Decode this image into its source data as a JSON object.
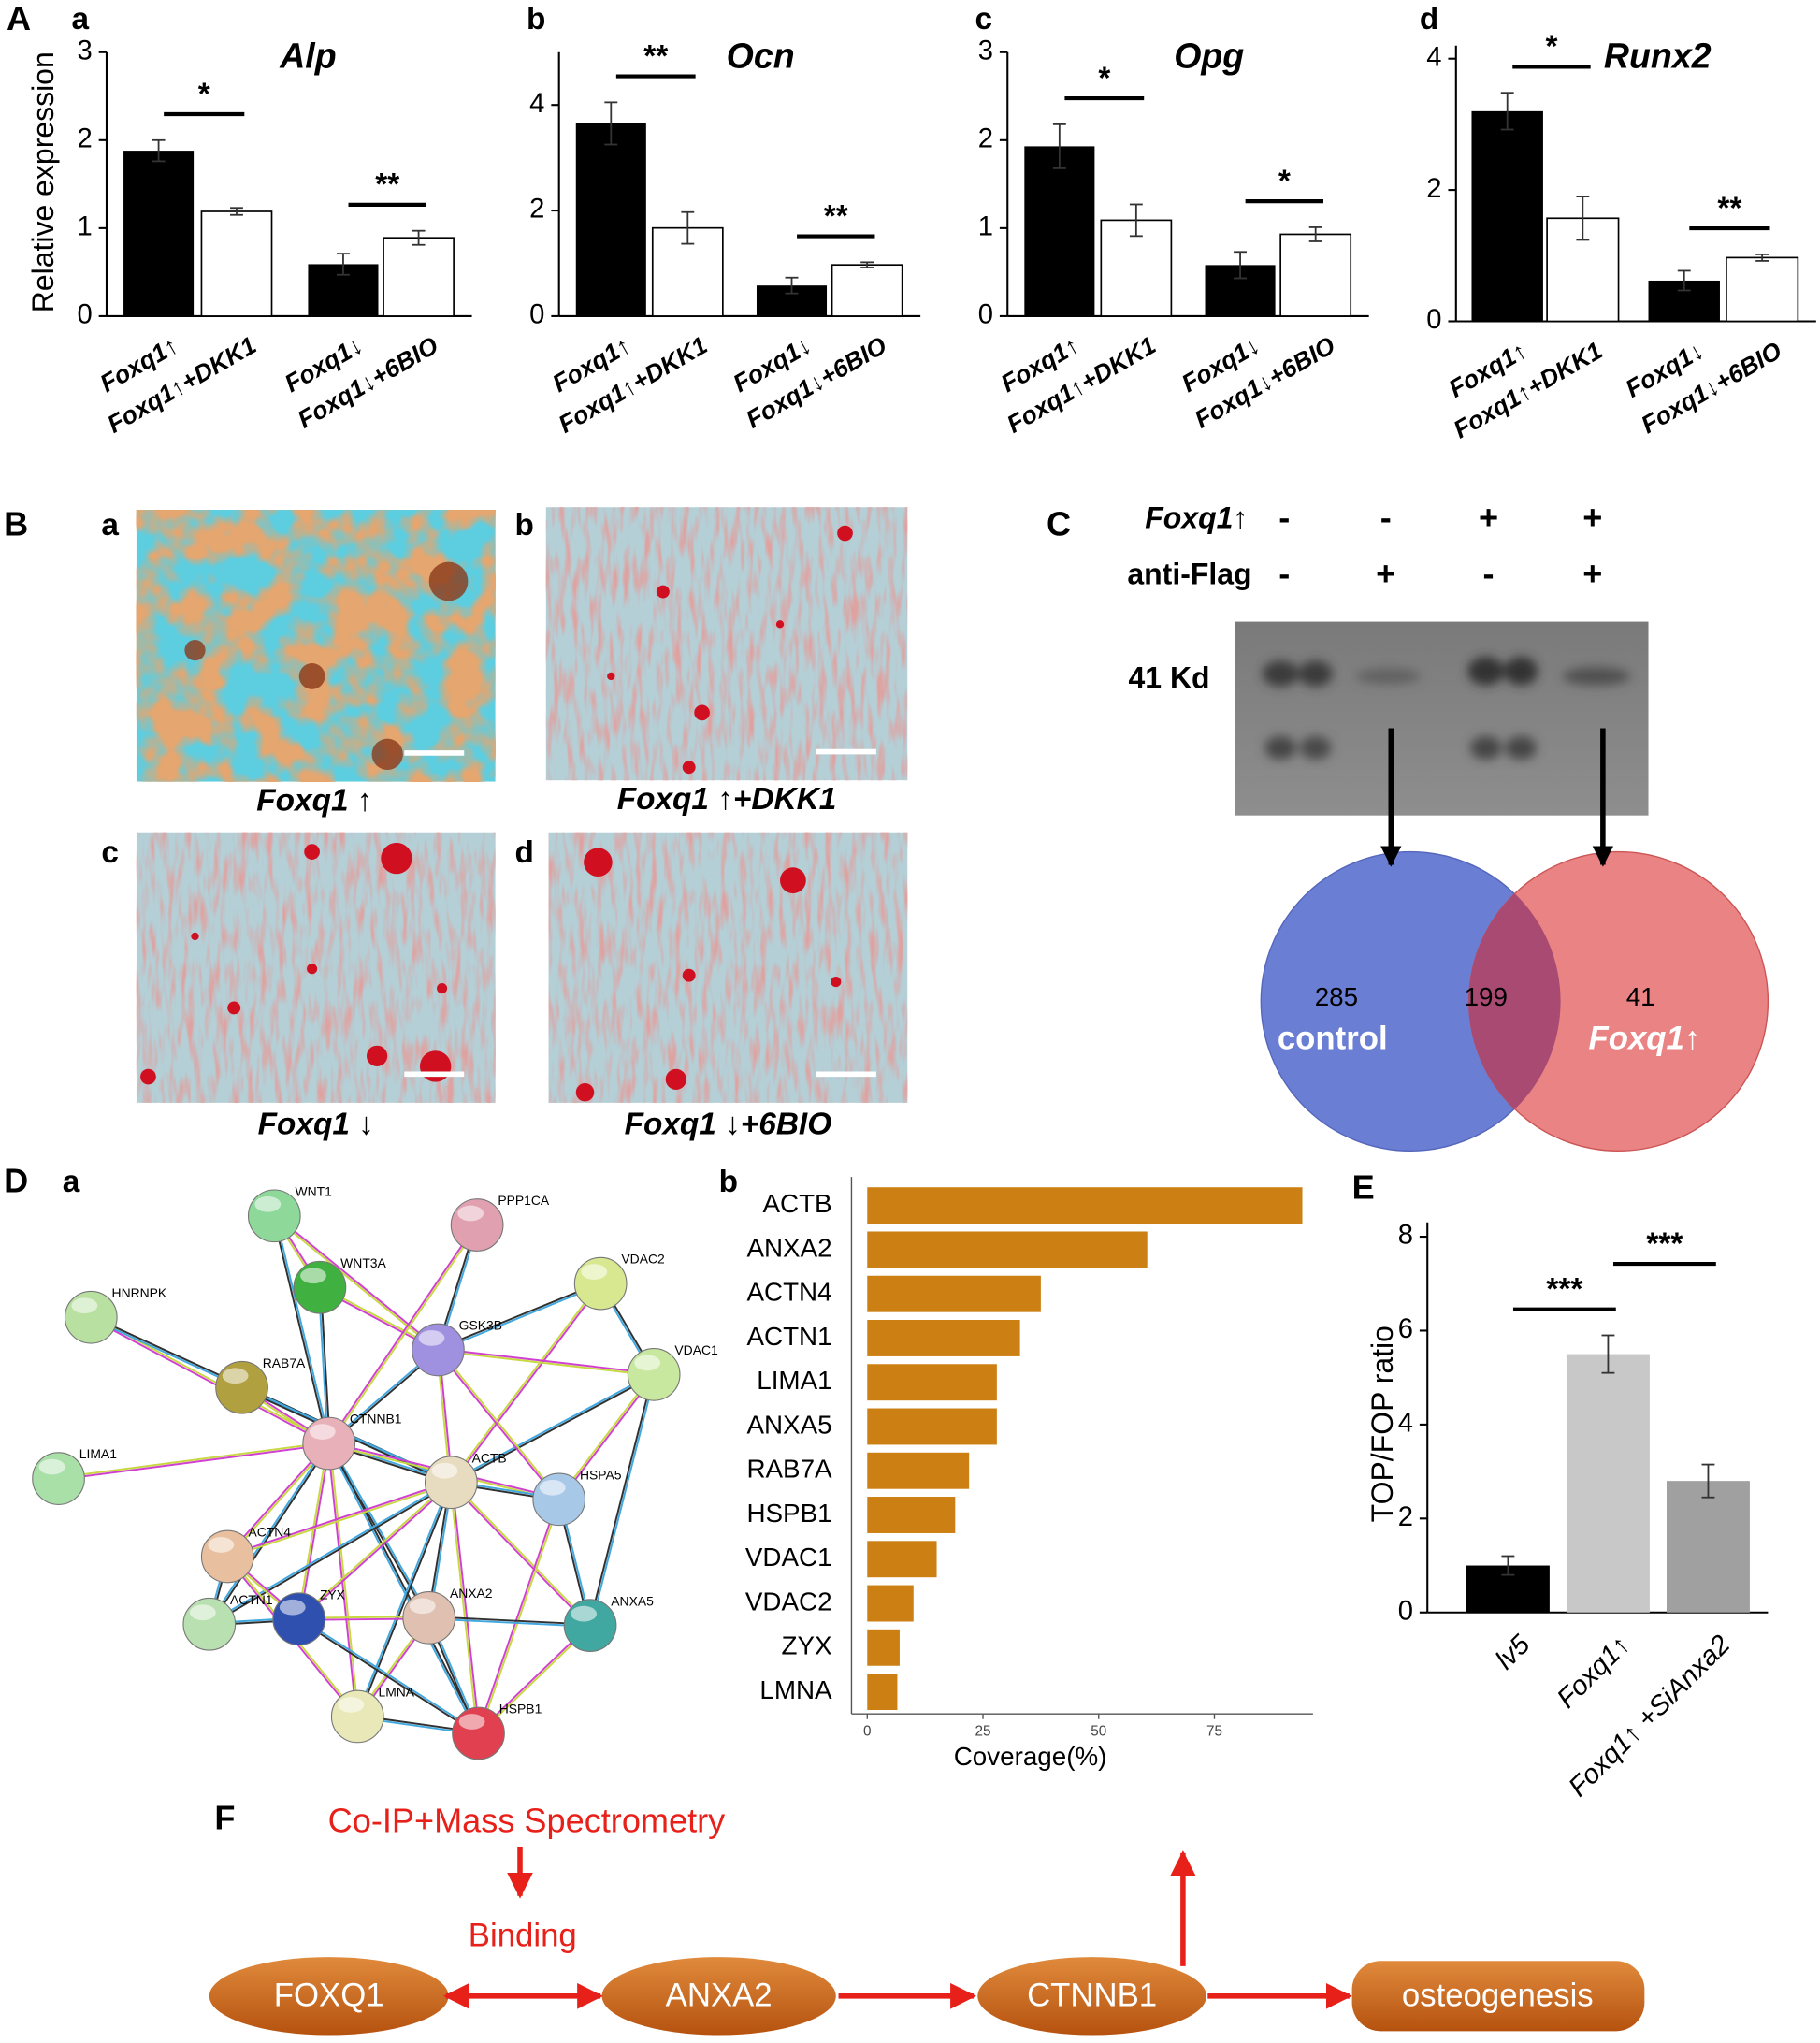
{
  "panel_labels": {
    "A": "A",
    "Aa": "a",
    "Ab": "b",
    "Ac": "c",
    "Ad": "d",
    "B": "B",
    "Ba": "a",
    "Bb": "b",
    "Bc": "c",
    "Bd": "d",
    "C": "C",
    "D": "D",
    "Da": "a",
    "Db": "b",
    "E": "E",
    "F": "F"
  },
  "chart_data": [
    {
      "type": "bar",
      "title": "Alp",
      "ylabel": "Relative expression",
      "categories": [
        "Foxq1↑",
        "Foxq1↑+DKK1",
        "Foxq1↓",
        "Foxq1↓+6BIO"
      ],
      "values": [
        1.88,
        1.19,
        0.59,
        0.89
      ],
      "errors": [
        0.12,
        0.04,
        0.12,
        0.08
      ],
      "colors": [
        "#000000",
        "#ffffff",
        "#000000",
        "#ffffff"
      ],
      "ylim": [
        0,
        3
      ],
      "yticks": [
        0,
        1,
        2,
        3
      ],
      "significance": [
        "*",
        "**"
      ]
    },
    {
      "type": "bar",
      "title": "Ocn",
      "categories": [
        "Foxq1↑",
        "Foxq1↑+DKK1",
        "Foxq1↓",
        "Foxq1↓+6BIO"
      ],
      "values": [
        3.65,
        1.67,
        0.58,
        0.97
      ],
      "errors": [
        0.4,
        0.3,
        0.15,
        0.05
      ],
      "colors": [
        "#000000",
        "#ffffff",
        "#000000",
        "#ffffff"
      ],
      "ylim": [
        0,
        5
      ],
      "yticks": [
        0,
        2,
        4
      ],
      "significance": [
        "**",
        "**"
      ]
    },
    {
      "type": "bar",
      "title": "Opg",
      "categories": [
        "Foxq1↑",
        "Foxq1↑+DKK1",
        "Foxq1↓",
        "Foxq1↓+6BIO"
      ],
      "values": [
        1.93,
        1.09,
        0.58,
        0.93
      ],
      "errors": [
        0.25,
        0.18,
        0.15,
        0.08
      ],
      "colors": [
        "#000000",
        "#ffffff",
        "#000000",
        "#ffffff"
      ],
      "ylim": [
        0,
        3
      ],
      "yticks": [
        0,
        1,
        2,
        3
      ],
      "significance": [
        "*",
        "*"
      ]
    },
    {
      "type": "bar",
      "title": "Runx2",
      "categories": [
        "Foxq1↑",
        "Foxq1↑+DKK1",
        "Foxq1↓",
        "Foxq1↓+6BIO"
      ],
      "values": [
        3.2,
        1.57,
        0.62,
        0.97
      ],
      "errors": [
        0.28,
        0.33,
        0.15,
        0.05
      ],
      "colors": [
        "#000000",
        "#ffffff",
        "#000000",
        "#ffffff"
      ],
      "ylim": [
        0,
        4.2
      ],
      "yticks": [
        0,
        2,
        4
      ],
      "significance": [
        "*",
        "**"
      ]
    },
    {
      "type": "barh",
      "xlabel": "Coverage(%)",
      "categories": [
        "ACTB",
        "ANXA2",
        "ACTN4",
        "ACTN1",
        "LIMA1",
        "ANXA5",
        "RAB7A",
        "HSPB1",
        "VDAC1",
        "VDAC2",
        "ZYX",
        "LMNA"
      ],
      "values": [
        94,
        60.5,
        37.5,
        33,
        28,
        28,
        22,
        19,
        15,
        10,
        7,
        6.5
      ],
      "color": "#cc7f12",
      "xlim": [
        -3.4,
        96.3
      ],
      "xticks": [
        0,
        25,
        50,
        75
      ]
    },
    {
      "type": "bar",
      "ylabel": "TOP/FOP ratio",
      "categories": [
        "lv5",
        "Foxq1↑",
        "Foxq1↑ +SiAnxa2"
      ],
      "values": [
        1.0,
        5.5,
        2.8
      ],
      "errors": [
        0.2,
        0.4,
        0.35
      ],
      "colors": [
        "#000000",
        "#c8c8c8",
        "#a0a0a0"
      ],
      "ylim": [
        0,
        8
      ],
      "yticks": [
        0,
        2,
        4,
        6,
        8
      ],
      "significance": [
        "***",
        "***"
      ]
    }
  ],
  "micrographs": [
    {
      "caption": "Foxq1 ↑"
    },
    {
      "caption": "Foxq1 ↑+DKK1"
    },
    {
      "caption": "Foxq1 ↓"
    },
    {
      "caption": "Foxq1 ↓+6BIO"
    }
  ],
  "blot": {
    "rows": [
      {
        "label": "Foxq1↑",
        "signs": [
          "-",
          "-",
          "+",
          "+"
        ]
      },
      {
        "label": "anti-Flag",
        "signs": [
          "-",
          "+",
          "-",
          "+"
        ]
      }
    ],
    "marker": "41 Kd"
  },
  "venn": {
    "left_count": "285",
    "left_label": "control",
    "overlap_count": "199",
    "right_count": "41",
    "right_label": "Foxq1↑"
  },
  "network": {
    "nodes": [
      "WNT1",
      "PPP1CA",
      "WNT3A",
      "VDAC2",
      "HNRNPK",
      "GSK3B",
      "VDAC1",
      "RAB7A",
      "CTNNB1",
      "ACTB",
      "HSPA5",
      "LIMA1",
      "ACTN4",
      "ACTN1",
      "ZYX",
      "ANXA2",
      "ANXA5",
      "LMNA",
      "HSPB1"
    ]
  },
  "flow": {
    "method": "Co-IP+Mass Spectrometry",
    "relation": "Binding",
    "nodes": [
      "FOXQ1",
      "ANXA2",
      "CTNNB1",
      "osteogenesis"
    ]
  }
}
